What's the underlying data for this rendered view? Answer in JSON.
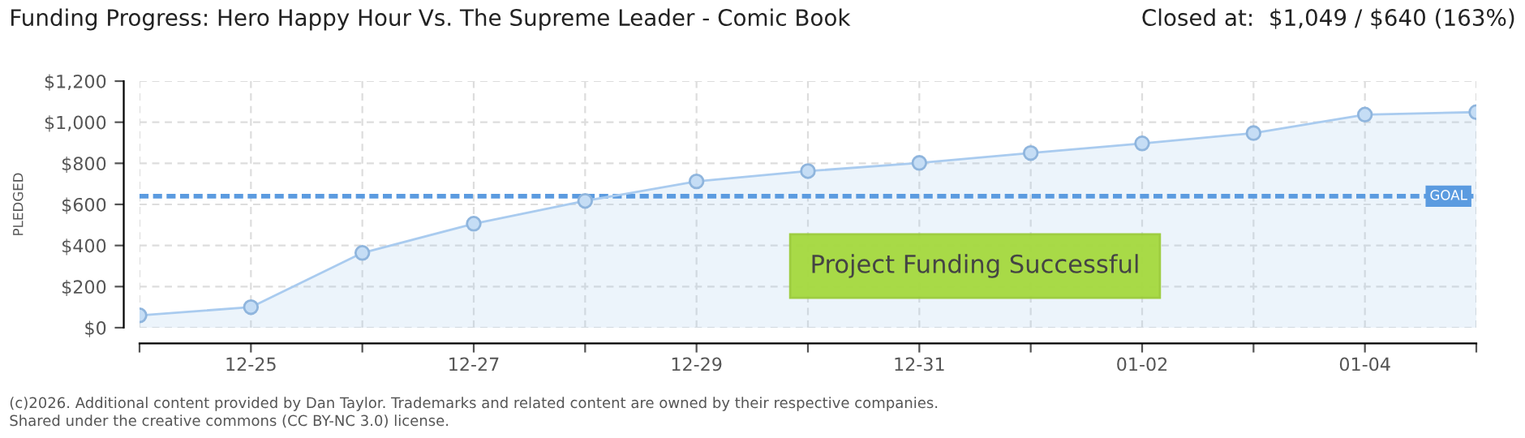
{
  "chart_data": {
    "type": "area",
    "title": "Funding Progress: Hero Happy Hour Vs. The Supreme Leader - Comic Book",
    "ylabel": "PLEDGED",
    "categories": [
      null,
      "12-25",
      null,
      "12-27",
      null,
      "12-29",
      null,
      "12-31",
      null,
      "01-02",
      null,
      "01-04",
      null
    ],
    "series": [
      {
        "color": "#a9cbef",
        "values": [
          60,
          100,
          364,
          506,
          617,
          712,
          762,
          802,
          850,
          897,
          947,
          1037,
          1049
        ]
      }
    ],
    "ylim": [
      0,
      1200
    ],
    "yticks": [
      {
        "value": 0,
        "label": "$0"
      },
      {
        "value": 200,
        "label": "$200"
      },
      {
        "value": 400,
        "label": "$400"
      },
      {
        "value": 600,
        "label": "$600"
      },
      {
        "value": 800,
        "label": "$800"
      },
      {
        "value": 1000,
        "label": "$1,000"
      },
      {
        "value": 1200,
        "label": "$1,200"
      }
    ],
    "ref_lines": [
      {
        "axis": "y",
        "value": 640,
        "label": "GOAL",
        "color": "#5b9be0",
        "line_style": "dotted"
      }
    ],
    "grid": true,
    "marker": "circle",
    "annotations": [
      "Closed at:  $1,049 / $640 (163%)",
      "Project Funding Successful",
      "(c)2026. Additional content provided by Dan Taylor. Trademarks and related content are owned by their respective companies.",
      "Shared under the creative commons (CC BY-NC 3.0) license."
    ]
  }
}
